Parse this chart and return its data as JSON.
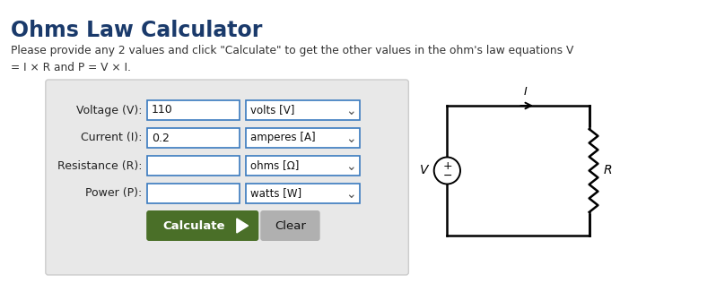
{
  "title": "Ohms Law Calculator",
  "title_color": "#1a3a6b",
  "bg_color": "#ffffff",
  "subtitle": "Please provide any 2 values and click \"Calculate\" to get the other values in the ohm's law equations V\n= I × R and P = V × I.",
  "panel_bg": "#e8e8e8",
  "panel_edge": "#cccccc",
  "input_bg": "#ffffff",
  "input_edge": "#3a7abf",
  "dropdown_bg": "#ffffff",
  "dropdown_edge": "#3a7abf",
  "labels": [
    "Voltage (V):",
    "Current (I):",
    "Resistance (R):",
    "Power (P):"
  ],
  "values": [
    "110",
    "0.2",
    "",
    ""
  ],
  "units": [
    "volts [V]",
    "amperes [A]",
    "ohms [Ω]",
    "watts [W]"
  ],
  "calc_btn_color": "#4a6f28",
  "calc_btn_text": "Calculate",
  "clear_btn_color": "#b0b0b0",
  "clear_btn_text": "Clear",
  "circuit_line_color": "#000000"
}
